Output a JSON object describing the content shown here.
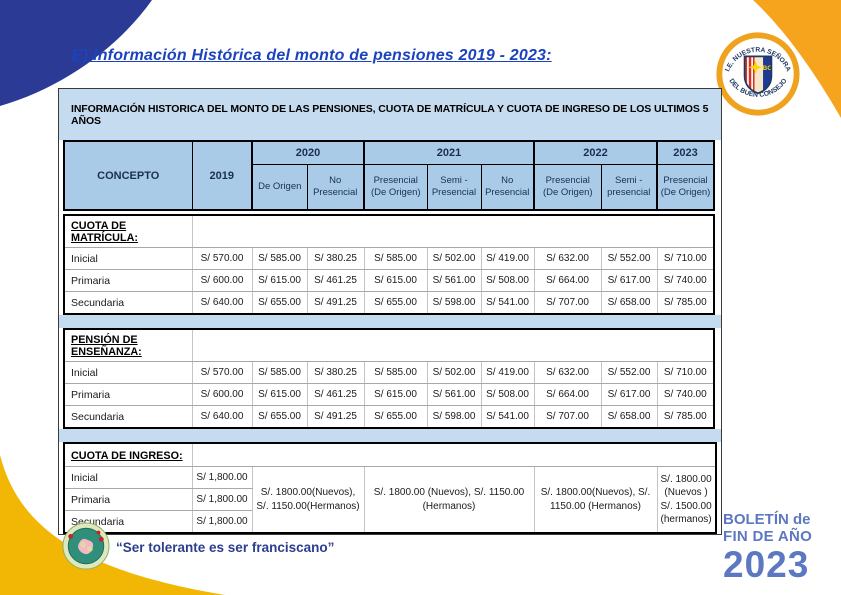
{
  "page": {
    "title": "E) Información Histórica del monto de pensiones 2019 - 2023:",
    "motto": "“Ser tolerante es ser franciscano”",
    "boletin": {
      "line1": "BOLETÍN de",
      "line2": "FIN DE AÑO",
      "year": "2023"
    },
    "badge": {
      "top_text": "I.E. NUESTRA SEÑORA",
      "bottom_text": "DEL BUEN CONSEJO",
      "shield_initials": "BC"
    }
  },
  "colors": {
    "navy_corner": "#2b3a94",
    "orange_corner": "#f6a41e",
    "gold_corner": "#f2b705",
    "title_blue": "#1c43be",
    "header_fill": "#a9cbe8",
    "band_fill": "#c5dbf0",
    "boletin_blue": "#5c78c0"
  },
  "table": {
    "title": "INFORMACIÓN HISTORICA DEL MONTO DE LAS PENSIONES, CUOTA DE MATRÍCULA Y CUOTA DE INGRESO DE LOS ULTIMOS 5 AÑOS",
    "concepto_header": "CONCEPTO",
    "year_groups": [
      {
        "year": "2019",
        "subs": []
      },
      {
        "year": "2020",
        "subs": [
          "De Origen",
          "No Presencial"
        ]
      },
      {
        "year": "2021",
        "subs": [
          "Presencial (De Origen)",
          "Semi - Presencial",
          "No Presencial"
        ]
      },
      {
        "year": "2022",
        "subs": [
          "Presencial (De Origen)",
          "Semi -presencial"
        ]
      },
      {
        "year": "2023",
        "subs": [
          "Presencial (De Origen)"
        ]
      }
    ],
    "sections": [
      {
        "label": "CUOTA DE MATRÍCULA:",
        "rows": [
          {
            "label": "Inicial",
            "values": [
              "S/ 570.00",
              "S/ 585.00",
              "S/ 380.25",
              "S/ 585.00",
              "S/ 502.00",
              "S/ 419.00",
              "S/ 632.00",
              "S/ 552.00",
              "S/ 710.00"
            ]
          },
          {
            "label": "Primaria",
            "values": [
              "S/ 600.00",
              "S/ 615.00",
              "S/ 461.25",
              "S/ 615.00",
              "S/ 561.00",
              "S/ 508.00",
              "S/ 664.00",
              "S/ 617.00",
              "S/ 740.00"
            ]
          },
          {
            "label": "Secundaria",
            "values": [
              "S/ 640.00",
              "S/ 655.00",
              "S/ 491.25",
              "S/ 655.00",
              "S/ 598.00",
              "S/ 541.00",
              "S/ 707.00",
              "S/ 658.00",
              "S/ 785.00"
            ]
          }
        ]
      },
      {
        "label": "PENSIÓN DE ENSEÑANZA:",
        "rows": [
          {
            "label": "Inicial",
            "values": [
              "S/ 570.00",
              "S/ 585.00",
              "S/ 380.25",
              "S/ 585.00",
              "S/ 502.00",
              "S/ 419.00",
              "S/ 632.00",
              "S/ 552.00",
              "S/ 710.00"
            ]
          },
          {
            "label": "Primaria",
            "values": [
              "S/ 600.00",
              "S/ 615.00",
              "S/ 461.25",
              "S/ 615.00",
              "S/ 561.00",
              "S/ 508.00",
              "S/ 664.00",
              "S/ 617.00",
              "S/ 740.00"
            ]
          },
          {
            "label": "Secundaria",
            "values": [
              "S/ 640.00",
              "S/ 655.00",
              "S/ 491.25",
              "S/ 655.00",
              "S/ 598.00",
              "S/ 541.00",
              "S/ 707.00",
              "S/ 658.00",
              "S/ 785.00"
            ]
          }
        ]
      },
      {
        "label": "CUOTA DE INGRESO:",
        "rows": [
          {
            "label": "Inicial",
            "values": [
              "S/ 1,800.00"
            ]
          },
          {
            "label": "Primaria",
            "values": [
              "S/ 1,800.00"
            ]
          },
          {
            "label": "Secundaria",
            "values": [
              "S/ 1,800.00"
            ]
          }
        ],
        "merged": [
          {
            "colspan": 2,
            "text": "S/. 1800.00(Nuevos), S/. 1150.00(Hermanos)"
          },
          {
            "colspan": 3,
            "text": "S/. 1800.00 (Nuevos), S/. 1150.00 (Hermanos)"
          },
          {
            "colspan": 2,
            "text": "S/. 1800.00(Nuevos), S/. 1150.00 (Hermanos)"
          },
          {
            "colspan": 1,
            "text": "S/. 1800.00 (Nuevos ) S/. 1500.00 (hermanos)"
          }
        ]
      }
    ]
  }
}
